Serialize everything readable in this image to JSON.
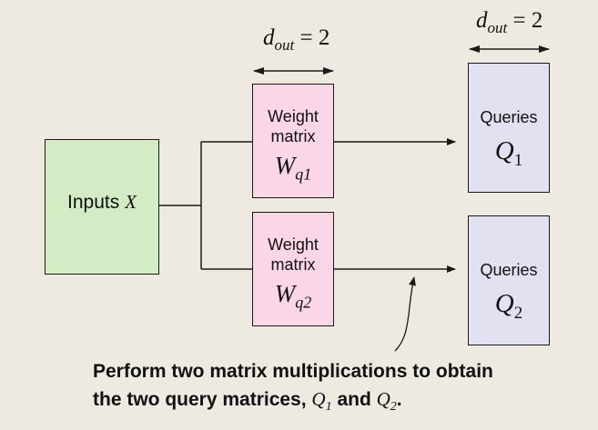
{
  "diagram": {
    "dim_label": {
      "var": "d",
      "sub": "out",
      "eq": "= 2"
    },
    "inputs": {
      "text": "Inputs",
      "symbol": "X"
    },
    "weights": [
      {
        "line1": "Weight",
        "line2": "matrix",
        "symbol": "W",
        "sub": "q1"
      },
      {
        "line1": "Weight",
        "line2": "matrix",
        "symbol": "W",
        "sub": "q2"
      }
    ],
    "queries": [
      {
        "label": "Queries",
        "symbol": "Q",
        "sub": "1"
      },
      {
        "label": "Queries",
        "symbol": "Q",
        "sub": "2"
      }
    ],
    "caption": {
      "line1": "Perform two matrix multiplications to obtain",
      "line2_prefix": "the two query matrices,",
      "q1": "Q",
      "q1_sub": "1",
      "and": "and",
      "q2": "Q",
      "q2_sub": "2",
      "end": "."
    }
  }
}
